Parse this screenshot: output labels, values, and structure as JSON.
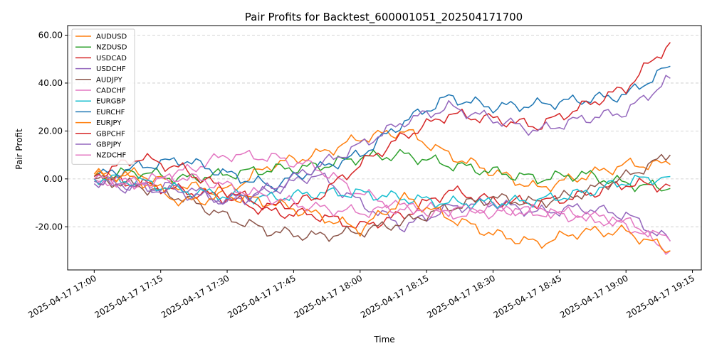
{
  "chart_data": {
    "type": "line",
    "title": "Pair Profits for Backtest_600001051_202504171700",
    "xlabel": "Time",
    "ylabel": "Pair Profit",
    "x_start": "2025-04-17 17:00",
    "x_end": "2025-04-17 19:10",
    "xlim": [
      "2025-04-17 16:54",
      "2025-04-17 19:17"
    ],
    "ylim": [
      -38,
      64
    ],
    "x_ticks": [
      "2025-04-17 17:00",
      "2025-04-17 17:15",
      "2025-04-17 17:30",
      "2025-04-17 17:45",
      "2025-04-17 18:00",
      "2025-04-17 18:15",
      "2025-04-17 18:30",
      "2025-04-17 18:45",
      "2025-04-17 19:00",
      "2025-04-17 19:15"
    ],
    "y_ticks": [
      "-20.00",
      "0.00",
      "20.00",
      "40.00",
      "60.00"
    ],
    "grid": "horizontal dashed",
    "legend_position": "upper-left",
    "series": [
      {
        "name": "AUDUSD",
        "color": "#ff7f0e",
        "x_min": [
          0,
          10,
          20,
          30,
          40,
          50,
          60,
          70,
          80,
          90,
          100,
          110,
          120,
          130
        ],
        "values": [
          1,
          2,
          -3,
          -5,
          6,
          10,
          17,
          20,
          10,
          3,
          -4,
          1,
          6,
          6
        ]
      },
      {
        "name": "NZDUSD",
        "color": "#2ca02c",
        "x_min": [
          0,
          10,
          20,
          30,
          40,
          50,
          60,
          70,
          80,
          90,
          100,
          110,
          120,
          130
        ],
        "values": [
          1,
          3,
          0,
          2,
          4,
          5,
          9,
          10,
          6,
          3,
          0,
          2,
          -2,
          -4
        ]
      },
      {
        "name": "USDCAD",
        "color": "#d62728",
        "x_min": [
          0,
          10,
          20,
          30,
          40,
          50,
          60,
          70,
          80,
          90,
          100,
          110,
          120,
          130
        ],
        "values": [
          0,
          -2,
          -5,
          -8,
          -14,
          -15,
          -20,
          -15,
          -5,
          -9,
          -10,
          -7,
          -2,
          -3
        ]
      },
      {
        "name": "USDCHF",
        "color": "#9467bd",
        "x_min": [
          0,
          10,
          20,
          30,
          40,
          50,
          60,
          70,
          80,
          90,
          100,
          110,
          120,
          130
        ],
        "values": [
          -2,
          -4,
          -3,
          -10,
          -5,
          2,
          -10,
          -20,
          -12,
          -10,
          -14,
          -12,
          -15,
          -26
        ]
      },
      {
        "name": "AUDJPY",
        "color": "#8c564b",
        "x_min": [
          0,
          10,
          20,
          30,
          40,
          50,
          60,
          70,
          80,
          90,
          100,
          110,
          120,
          130
        ],
        "values": [
          0,
          -3,
          -8,
          -16,
          -22,
          -24,
          -22,
          -18,
          -12,
          -8,
          -10,
          -6,
          1,
          10
        ]
      },
      {
        "name": "CADCHF",
        "color": "#e377c2",
        "x_min": [
          0,
          10,
          20,
          30,
          40,
          50,
          60,
          70,
          80,
          90,
          100,
          110,
          120,
          130
        ],
        "values": [
          0,
          -2,
          3,
          10,
          9,
          5,
          -6,
          -12,
          -13,
          -12,
          -14,
          -16,
          -19,
          -30
        ]
      },
      {
        "name": "EURGBP",
        "color": "#17becf",
        "x_min": [
          0,
          10,
          20,
          30,
          40,
          50,
          60,
          70,
          80,
          90,
          100,
          110,
          120,
          130
        ],
        "values": [
          0,
          -1,
          -5,
          -7,
          -8,
          -6,
          -6,
          -8,
          -10,
          -10,
          -9,
          -6,
          -1,
          1
        ]
      },
      {
        "name": "EURCHF",
        "color": "#1f77b4",
        "x_min": [
          0,
          10,
          20,
          30,
          40,
          50,
          60,
          70,
          80,
          90,
          100,
          110,
          120,
          130
        ],
        "values": [
          1,
          5,
          8,
          2,
          -3,
          4,
          10,
          24,
          34,
          30,
          31,
          33,
          35,
          47
        ]
      },
      {
        "name": "EURJPY",
        "color": "#ff7f0e",
        "x_min": [
          0,
          10,
          20,
          30,
          40,
          50,
          60,
          70,
          80,
          90,
          100,
          110,
          120,
          130
        ],
        "values": [
          2,
          0,
          -10,
          -7,
          -10,
          -15,
          -21,
          -8,
          -16,
          -23,
          -27,
          -22,
          -22,
          -30
        ]
      },
      {
        "name": "GBPCHF",
        "color": "#d62728",
        "x_min": [
          0,
          10,
          20,
          30,
          40,
          50,
          60,
          70,
          80,
          90,
          100,
          110,
          120,
          130
        ],
        "values": [
          1,
          9,
          4,
          -5,
          -12,
          -8,
          6,
          18,
          27,
          25,
          22,
          30,
          38,
          57
        ]
      },
      {
        "name": "GBPJPY",
        "color": "#9467bd",
        "x_min": [
          0,
          10,
          20,
          30,
          40,
          50,
          60,
          70,
          80,
          90,
          100,
          110,
          120,
          130
        ],
        "values": [
          -1,
          -3,
          -6,
          -9,
          -4,
          5,
          14,
          24,
          30,
          25,
          20,
          25,
          28,
          42
        ]
      },
      {
        "name": "NZDCHF",
        "color": "#e377c2",
        "x_min": [
          0,
          10,
          20,
          30,
          40,
          50,
          60,
          70,
          80,
          90,
          100,
          110,
          120,
          130
        ],
        "values": [
          0,
          -2,
          1,
          -3,
          -8,
          -12,
          -14,
          -12,
          -15,
          -14,
          -13,
          -15,
          -18,
          -26
        ]
      }
    ]
  }
}
